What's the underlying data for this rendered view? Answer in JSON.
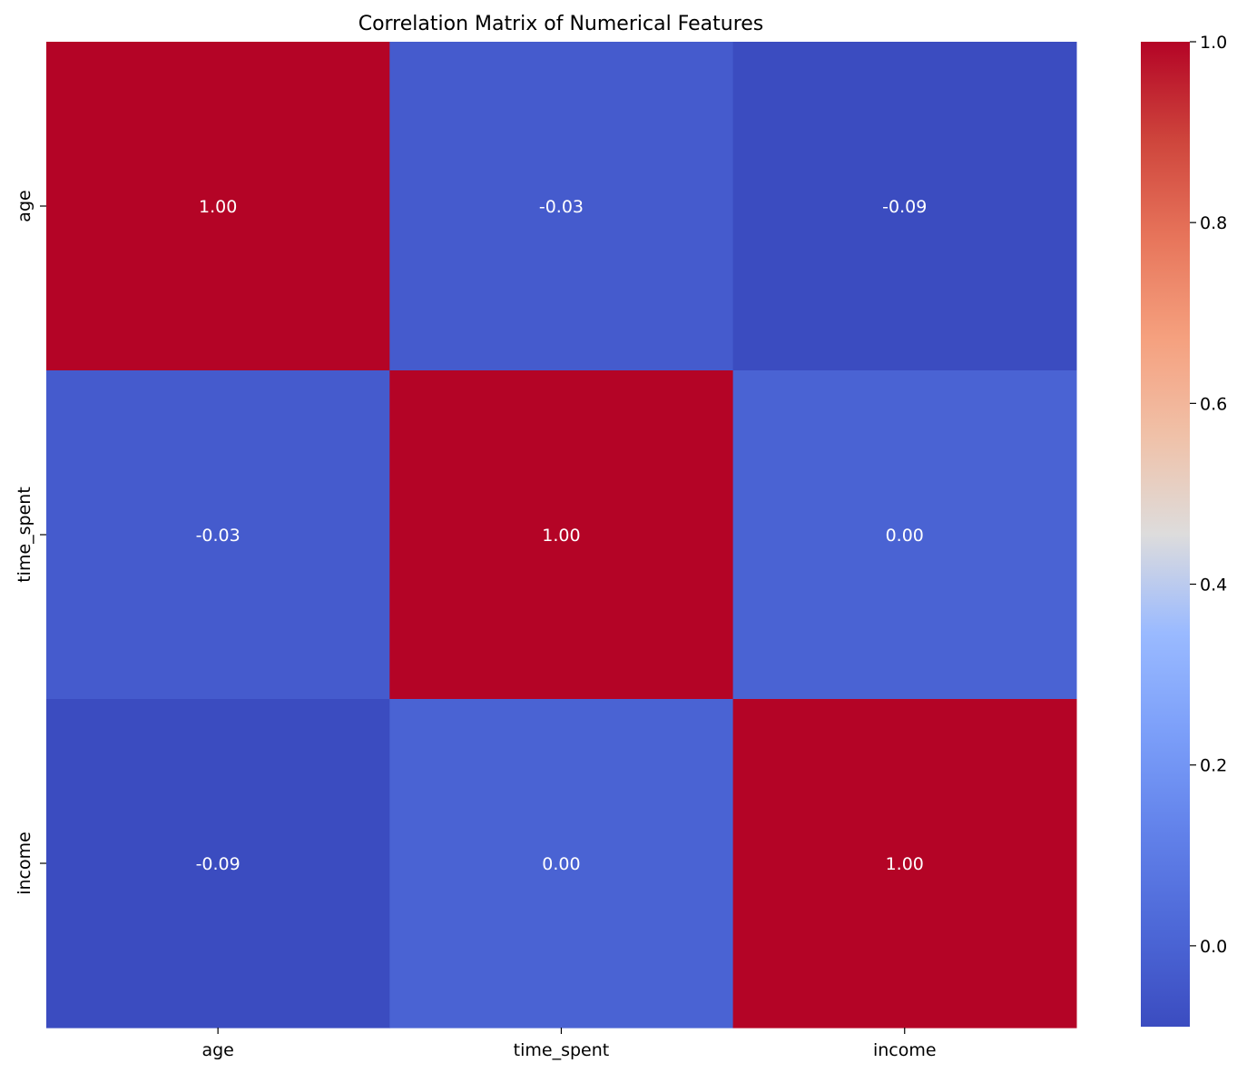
{
  "chart_data": {
    "type": "heatmap",
    "title": "Correlation Matrix of Numerical Features",
    "x_labels": [
      "age",
      "time_spent",
      "income"
    ],
    "y_labels": [
      "age",
      "time_spent",
      "income"
    ],
    "values": [
      [
        1.0,
        -0.03,
        -0.09
      ],
      [
        -0.03,
        1.0,
        0.0
      ],
      [
        -0.09,
        0.0,
        1.0
      ]
    ],
    "cell_labels": [
      [
        "1.00",
        "-0.03",
        "-0.09"
      ],
      [
        "-0.03",
        "1.00",
        "0.00"
      ],
      [
        "-0.09",
        "0.00",
        "1.00"
      ]
    ],
    "colormap": "coolwarm",
    "colorbar": {
      "range": [
        -0.0895,
        1.0
      ],
      "ticks": [
        0.0,
        0.2,
        0.4,
        0.6,
        0.8,
        1.0
      ],
      "tick_labels": [
        "0.0",
        "0.2",
        "0.4",
        "0.6",
        "0.8",
        "1.0"
      ]
    }
  }
}
